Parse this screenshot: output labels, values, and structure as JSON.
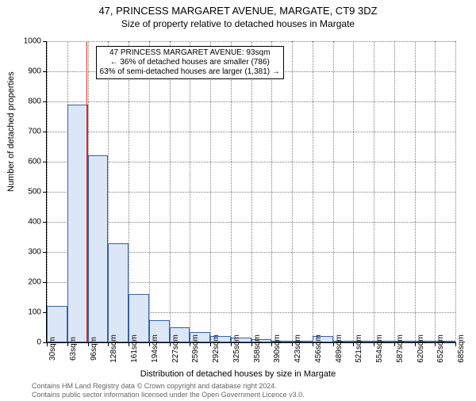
{
  "title": {
    "main": "47, PRINCESS MARGARET AVENUE, MARGATE, CT9 3DZ",
    "sub": "Size of property relative to detached houses in Margate"
  },
  "axes": {
    "ylabel": "Number of detached properties",
    "xlabel": "Distribution of detached houses by size in Margate"
  },
  "chart": {
    "type": "histogram",
    "ylim": [
      0,
      1000
    ],
    "ytick_step": 100,
    "yticks": [
      0,
      100,
      200,
      300,
      400,
      500,
      600,
      700,
      800,
      900,
      1000
    ],
    "xticks": [
      "30sqm",
      "63sqm",
      "96sqm",
      "128sqm",
      "161sqm",
      "194sqm",
      "227sqm",
      "259sqm",
      "292sqm",
      "325sqm",
      "358sqm",
      "390sqm",
      "423sqm",
      "456sqm",
      "489sqm",
      "521sqm",
      "554sqm",
      "587sqm",
      "620sqm",
      "652sqm",
      "685sqm"
    ],
    "bar_fill": "#dbe6f7",
    "bar_stroke": "#3b5fa8",
    "grid_color": "#808080",
    "background_color": "#ffffff",
    "bars": [
      120,
      790,
      620,
      330,
      160,
      75,
      50,
      35,
      20,
      15,
      10,
      5,
      5,
      20,
      2,
      2,
      2,
      2,
      2,
      2
    ],
    "marker_position": 93,
    "marker_color": "#d9281c",
    "x_range": [
      30,
      685
    ]
  },
  "annotation": {
    "line1": "47 PRINCESS MARGARET AVENUE: 93sqm",
    "line2": "← 36% of detached houses are smaller (786)",
    "line3": "63% of semi-detached houses are larger (1,381) →"
  },
  "footer": {
    "line1": "Contains HM Land Registry data © Crown copyright and database right 2024.",
    "line2": "Contains public sector information licensed under the Open Government Licence v3.0."
  }
}
